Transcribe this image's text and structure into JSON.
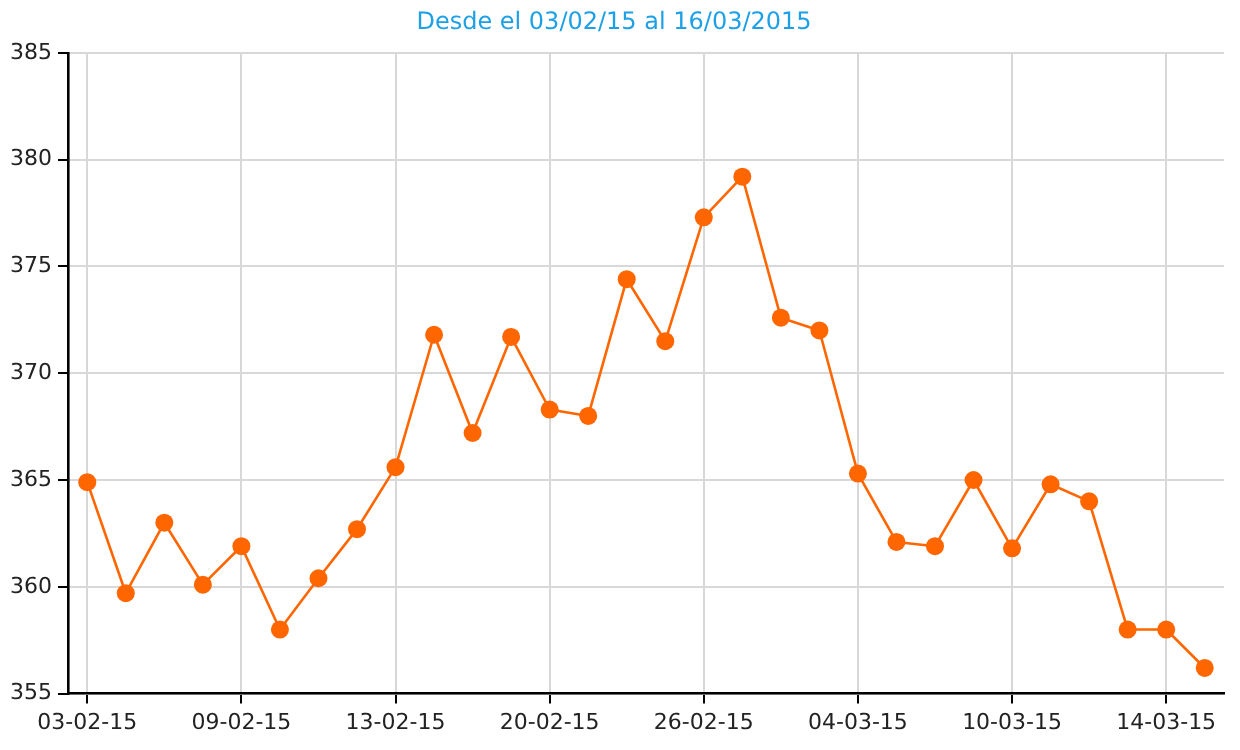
{
  "chart_data": {
    "type": "line",
    "title": "Desde el 03/02/15 al 16/03/2015",
    "categories": [
      "03-02-15",
      null,
      null,
      null,
      "09-02-15",
      null,
      null,
      null,
      "13-02-15",
      null,
      null,
      null,
      "20-02-15",
      null,
      null,
      null,
      "26-02-15",
      null,
      null,
      null,
      "04-03-15",
      null,
      null,
      null,
      "10-03-15",
      null,
      null,
      null,
      "14-03-15",
      null
    ],
    "series": [
      {
        "color": "#ff6600",
        "values": [
          364.9,
          359.7,
          363.0,
          360.1,
          361.9,
          358.0,
          360.4,
          362.7,
          365.6,
          371.8,
          367.2,
          371.7,
          368.3,
          368.0,
          374.4,
          371.5,
          377.3,
          379.2,
          372.6,
          372.0,
          365.3,
          362.1,
          361.9,
          365.0,
          361.8,
          364.8,
          364.0,
          358.0,
          358.0,
          356.2
        ]
      }
    ],
    "ylim": [
      355,
      385
    ],
    "yticks": [
      355,
      360,
      365,
      370,
      375,
      380,
      385
    ],
    "grid": true,
    "legend": false,
    "marker": "circle",
    "line_style": "solid"
  }
}
